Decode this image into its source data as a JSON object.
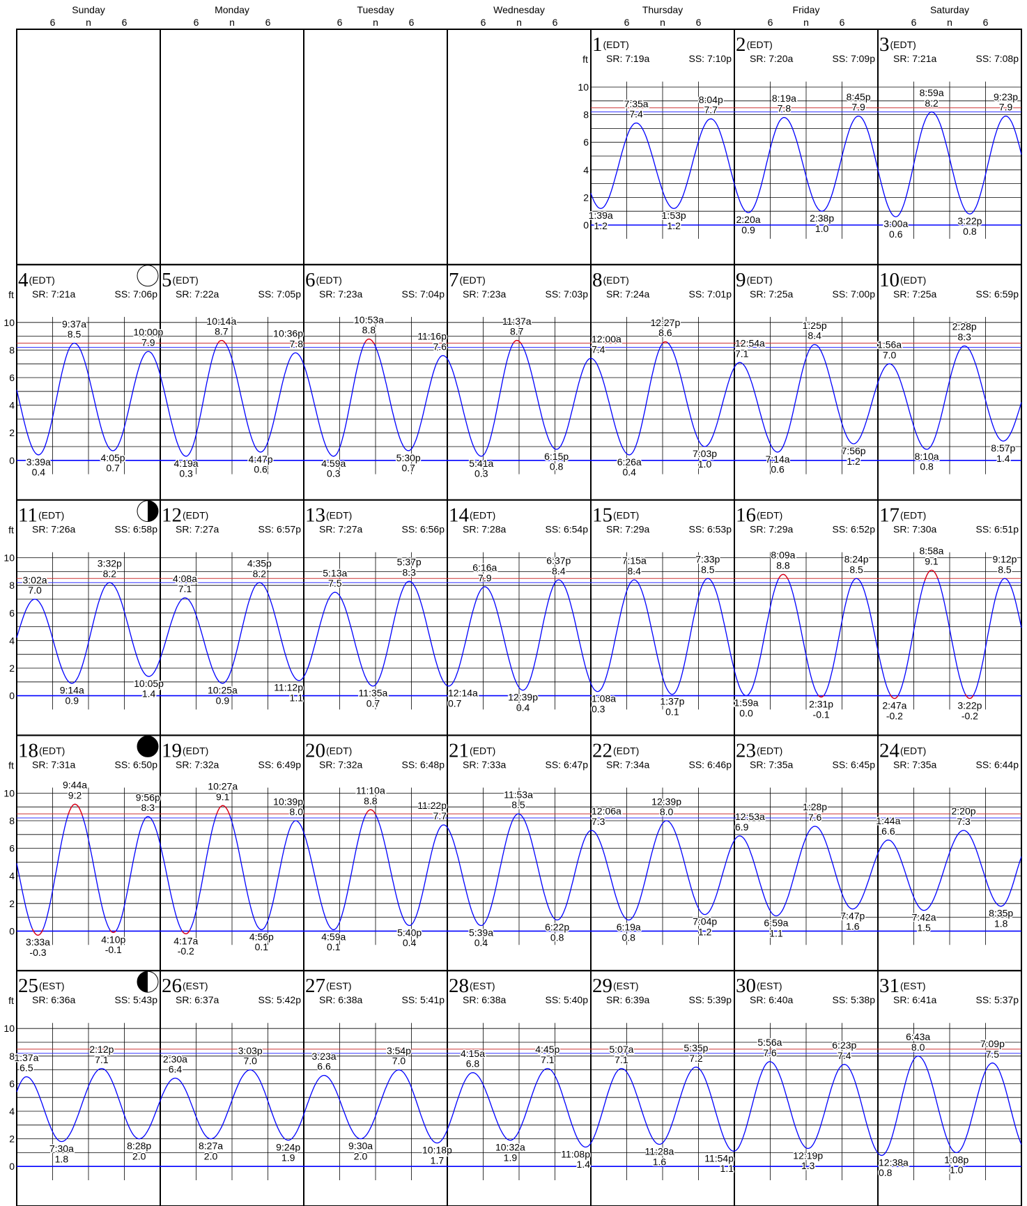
{
  "weekdays": [
    "Sunday",
    "Monday",
    "Tuesday",
    "Wednesday",
    "Thursday",
    "Friday",
    "Saturday"
  ],
  "hour_labels": [
    "6",
    "n",
    "6"
  ],
  "y_axis": {
    "unit": "ft",
    "ticks": [
      0,
      2,
      4,
      6,
      8,
      10
    ]
  },
  "days": [
    {
      "date": 1,
      "tz": "(EDT)",
      "sunrise": "SR: 7:19a",
      "sunset": "SS: 7:10p",
      "tides": [
        {
          "time": "1:39a",
          "height": "1.2"
        },
        {
          "time": "7:35a",
          "height": "7.4"
        },
        {
          "time": "1:53p",
          "height": "1.2"
        },
        {
          "time": "8:04p",
          "height": "7.7"
        }
      ]
    },
    {
      "date": 2,
      "tz": "(EDT)",
      "sunrise": "SR: 7:20a",
      "sunset": "SS: 7:09p",
      "tides": [
        {
          "time": "2:20a",
          "height": "0.9"
        },
        {
          "time": "8:19a",
          "height": "7.8"
        },
        {
          "time": "2:38p",
          "height": "1.0"
        },
        {
          "time": "8:45p",
          "height": "7.9"
        }
      ]
    },
    {
      "date": 3,
      "tz": "(EDT)",
      "sunrise": "SR: 7:21a",
      "sunset": "SS: 7:08p",
      "tides": [
        {
          "time": "3:00a",
          "height": "0.6"
        },
        {
          "time": "8:59a",
          "height": "8.2"
        },
        {
          "time": "3:22p",
          "height": "0.8"
        },
        {
          "time": "9:23p",
          "height": "7.9"
        }
      ]
    },
    {
      "date": 4,
      "tz": "(EDT)",
      "sunrise": "SR: 7:21a",
      "sunset": "SS: 7:06p",
      "tides": [
        {
          "time": "3:39a",
          "height": "0.4"
        },
        {
          "time": "9:37a",
          "height": "8.5"
        },
        {
          "time": "4:05p",
          "height": "0.7"
        },
        {
          "time": "10:00p",
          "height": "7.9"
        }
      ]
    },
    {
      "date": 5,
      "tz": "(EDT)",
      "sunrise": "SR: 7:22a",
      "sunset": "SS: 7:05p",
      "tides": [
        {
          "time": "4:19a",
          "height": "0.3"
        },
        {
          "time": "10:14a",
          "height": "8.7"
        },
        {
          "time": "4:47p",
          "height": "0.6"
        },
        {
          "time": "10:36p",
          "height": "7.8"
        }
      ]
    },
    {
      "date": 6,
      "tz": "(EDT)",
      "sunrise": "SR: 7:23a",
      "sunset": "SS: 7:04p",
      "tides": [
        {
          "time": "4:59a",
          "height": "0.3"
        },
        {
          "time": "10:53a",
          "height": "8.8"
        },
        {
          "time": "5:30p",
          "height": "0.7"
        },
        {
          "time": "11:16p",
          "height": "7.6"
        }
      ]
    },
    {
      "date": 7,
      "tz": "(EDT)",
      "sunrise": "SR: 7:23a",
      "sunset": "SS: 7:03p",
      "tides": [
        {
          "time": "5:41a",
          "height": "0.3"
        },
        {
          "time": "11:37a",
          "height": "8.7"
        },
        {
          "time": "6:15p",
          "height": "0.8"
        }
      ]
    },
    {
      "date": 8,
      "tz": "(EDT)",
      "sunrise": "SR: 7:24a",
      "sunset": "SS: 7:01p",
      "tides": [
        {
          "time": "12:00a",
          "height": "7.4"
        },
        {
          "time": "6:26a",
          "height": "0.4"
        },
        {
          "time": "12:27p",
          "height": "8.6"
        },
        {
          "time": "7:03p",
          "height": "1.0"
        }
      ]
    },
    {
      "date": 9,
      "tz": "(EDT)",
      "sunrise": "SR: 7:25a",
      "sunset": "SS: 7:00p",
      "tides": [
        {
          "time": "12:54a",
          "height": "7.1"
        },
        {
          "time": "7:14a",
          "height": "0.6"
        },
        {
          "time": "1:25p",
          "height": "8.4"
        },
        {
          "time": "7:56p",
          "height": "1.2"
        }
      ]
    },
    {
      "date": 10,
      "tz": "(EDT)",
      "sunrise": "SR: 7:25a",
      "sunset": "SS: 6:59p",
      "tides": [
        {
          "time": "1:56a",
          "height": "7.0"
        },
        {
          "time": "8:10a",
          "height": "0.8"
        },
        {
          "time": "2:28p",
          "height": "8.3"
        },
        {
          "time": "8:57p",
          "height": "1.4"
        }
      ]
    },
    {
      "date": 11,
      "tz": "(EDT)",
      "sunrise": "SR: 7:26a",
      "sunset": "SS: 6:58p",
      "tides": [
        {
          "time": "3:02a",
          "height": "7.0"
        },
        {
          "time": "9:14a",
          "height": "0.9"
        },
        {
          "time": "3:32p",
          "height": "8.2"
        },
        {
          "time": "10:05p",
          "height": "1.4"
        }
      ]
    },
    {
      "date": 12,
      "tz": "(EDT)",
      "sunrise": "SR: 7:27a",
      "sunset": "SS: 6:57p",
      "tides": [
        {
          "time": "4:08a",
          "height": "7.1"
        },
        {
          "time": "10:25a",
          "height": "0.9"
        },
        {
          "time": "4:35p",
          "height": "8.2"
        },
        {
          "time": "11:12p",
          "height": "1.1"
        }
      ]
    },
    {
      "date": 13,
      "tz": "(EDT)",
      "sunrise": "SR: 7:27a",
      "sunset": "SS: 6:56p",
      "tides": [
        {
          "time": "5:13a",
          "height": "7.5"
        },
        {
          "time": "11:35a",
          "height": "0.7"
        },
        {
          "time": "5:37p",
          "height": "8.3"
        }
      ]
    },
    {
      "date": 14,
      "tz": "(EDT)",
      "sunrise": "SR: 7:28a",
      "sunset": "SS: 6:54p",
      "tides": [
        {
          "time": "12:14a",
          "height": "0.7"
        },
        {
          "time": "6:16a",
          "height": "7.9"
        },
        {
          "time": "12:39p",
          "height": "0.4"
        },
        {
          "time": "6:37p",
          "height": "8.4"
        }
      ]
    },
    {
      "date": 15,
      "tz": "(EDT)",
      "sunrise": "SR: 7:29a",
      "sunset": "SS: 6:53p",
      "tides": [
        {
          "time": "1:08a",
          "height": "0.3"
        },
        {
          "time": "7:15a",
          "height": "8.4"
        },
        {
          "time": "1:37p",
          "height": "0.1"
        },
        {
          "time": "7:33p",
          "height": "8.5"
        }
      ]
    },
    {
      "date": 16,
      "tz": "(EDT)",
      "sunrise": "SR: 7:29a",
      "sunset": "SS: 6:52p",
      "tides": [
        {
          "time": "1:59a",
          "height": "0.0"
        },
        {
          "time": "8:09a",
          "height": "8.8"
        },
        {
          "time": "2:31p",
          "height": "-0.1"
        },
        {
          "time": "8:24p",
          "height": "8.5"
        }
      ]
    },
    {
      "date": 17,
      "tz": "(EDT)",
      "sunrise": "SR: 7:30a",
      "sunset": "SS: 6:51p",
      "tides": [
        {
          "time": "2:47a",
          "height": "-0.2"
        },
        {
          "time": "8:58a",
          "height": "9.1"
        },
        {
          "time": "3:22p",
          "height": "-0.2"
        },
        {
          "time": "9:12p",
          "height": "8.5"
        }
      ]
    },
    {
      "date": 18,
      "tz": "(EDT)",
      "sunrise": "SR: 7:31a",
      "sunset": "SS: 6:50p",
      "tides": [
        {
          "time": "3:33a",
          "height": "-0.3"
        },
        {
          "time": "9:44a",
          "height": "9.2"
        },
        {
          "time": "4:10p",
          "height": "-0.1"
        },
        {
          "time": "9:56p",
          "height": "8.3"
        }
      ]
    },
    {
      "date": 19,
      "tz": "(EDT)",
      "sunrise": "SR: 7:32a",
      "sunset": "SS: 6:49p",
      "tides": [
        {
          "time": "4:17a",
          "height": "-0.2"
        },
        {
          "time": "10:27a",
          "height": "9.1"
        },
        {
          "time": "4:56p",
          "height": "0.1"
        },
        {
          "time": "10:39p",
          "height": "8.0"
        }
      ]
    },
    {
      "date": 20,
      "tz": "(EDT)",
      "sunrise": "SR: 7:32a",
      "sunset": "SS: 6:48p",
      "tides": [
        {
          "time": "4:59a",
          "height": "0.1"
        },
        {
          "time": "11:10a",
          "height": "8.8"
        },
        {
          "time": "5:40p",
          "height": "0.4"
        },
        {
          "time": "11:22p",
          "height": "7.7"
        }
      ]
    },
    {
      "date": 21,
      "tz": "(EDT)",
      "sunrise": "SR: 7:33a",
      "sunset": "SS: 6:47p",
      "tides": [
        {
          "time": "5:39a",
          "height": "0.4"
        },
        {
          "time": "11:53a",
          "height": "8.5"
        },
        {
          "time": "6:22p",
          "height": "0.8"
        }
      ]
    },
    {
      "date": 22,
      "tz": "(EDT)",
      "sunrise": "SR: 7:34a",
      "sunset": "SS: 6:46p",
      "tides": [
        {
          "time": "12:06a",
          "height": "7.3"
        },
        {
          "time": "6:19a",
          "height": "0.8"
        },
        {
          "time": "12:39p",
          "height": "8.0"
        },
        {
          "time": "7:04p",
          "height": "1.2"
        }
      ]
    },
    {
      "date": 23,
      "tz": "(EDT)",
      "sunrise": "SR: 7:35a",
      "sunset": "SS: 6:45p",
      "tides": [
        {
          "time": "12:53a",
          "height": "6.9"
        },
        {
          "time": "6:59a",
          "height": "1.1"
        },
        {
          "time": "1:28p",
          "height": "7.6"
        },
        {
          "time": "7:47p",
          "height": "1.6"
        }
      ]
    },
    {
      "date": 24,
      "tz": "(EDT)",
      "sunrise": "SR: 7:35a",
      "sunset": "SS: 6:44p",
      "tides": [
        {
          "time": "1:44a",
          "height": "6.6"
        },
        {
          "time": "7:42a",
          "height": "1.5"
        },
        {
          "time": "2:20p",
          "height": "7.3"
        },
        {
          "time": "8:35p",
          "height": "1.8"
        }
      ]
    },
    {
      "date": 25,
      "tz": "(EST)",
      "sunrise": "SR: 6:36a",
      "sunset": "SS: 5:43p",
      "tides": [
        {
          "time": "1:37a",
          "height": "6.5"
        },
        {
          "time": "7:30a",
          "height": "1.8"
        },
        {
          "time": "2:12p",
          "height": "7.1"
        },
        {
          "time": "8:28p",
          "height": "2.0"
        }
      ]
    },
    {
      "date": 26,
      "tz": "(EST)",
      "sunrise": "SR: 6:37a",
      "sunset": "SS: 5:42p",
      "tides": [
        {
          "time": "2:30a",
          "height": "6.4"
        },
        {
          "time": "8:27a",
          "height": "2.0"
        },
        {
          "time": "3:03p",
          "height": "7.0"
        },
        {
          "time": "9:24p",
          "height": "1.9"
        }
      ]
    },
    {
      "date": 27,
      "tz": "(EST)",
      "sunrise": "SR: 6:38a",
      "sunset": "SS: 5:41p",
      "tides": [
        {
          "time": "3:23a",
          "height": "6.6"
        },
        {
          "time": "9:30a",
          "height": "2.0"
        },
        {
          "time": "3:54p",
          "height": "7.0"
        },
        {
          "time": "10:18p",
          "height": "1.7"
        }
      ]
    },
    {
      "date": 28,
      "tz": "(EST)",
      "sunrise": "SR: 6:38a",
      "sunset": "SS: 5:40p",
      "tides": [
        {
          "time": "4:15a",
          "height": "6.8"
        },
        {
          "time": "10:32a",
          "height": "1.9"
        },
        {
          "time": "4:45p",
          "height": "7.1"
        },
        {
          "time": "11:08p",
          "height": "1.4"
        }
      ]
    },
    {
      "date": 29,
      "tz": "(EST)",
      "sunrise": "SR: 6:39a",
      "sunset": "SS: 5:39p",
      "tides": [
        {
          "time": "5:07a",
          "height": "7.1"
        },
        {
          "time": "11:28a",
          "height": "1.6"
        },
        {
          "time": "5:35p",
          "height": "7.2"
        },
        {
          "time": "11:54p",
          "height": "1.1"
        }
      ]
    },
    {
      "date": 30,
      "tz": "(EST)",
      "sunrise": "SR: 6:40a",
      "sunset": "SS: 5:38p",
      "tides": [
        {
          "time": "5:56a",
          "height": "7.6"
        },
        {
          "time": "12:19p",
          "height": "1.3"
        },
        {
          "time": "6:23p",
          "height": "7.4"
        }
      ]
    },
    {
      "date": 31,
      "tz": "(EST)",
      "sunrise": "SR: 6:41a",
      "sunset": "SS: 5:37p",
      "tides": [
        {
          "time": "12:38a",
          "height": "0.8"
        },
        {
          "time": "6:43a",
          "height": "8.0"
        },
        {
          "time": "1:08p",
          "height": "1.0"
        },
        {
          "time": "7:09p",
          "height": "7.5"
        }
      ]
    }
  ]
}
